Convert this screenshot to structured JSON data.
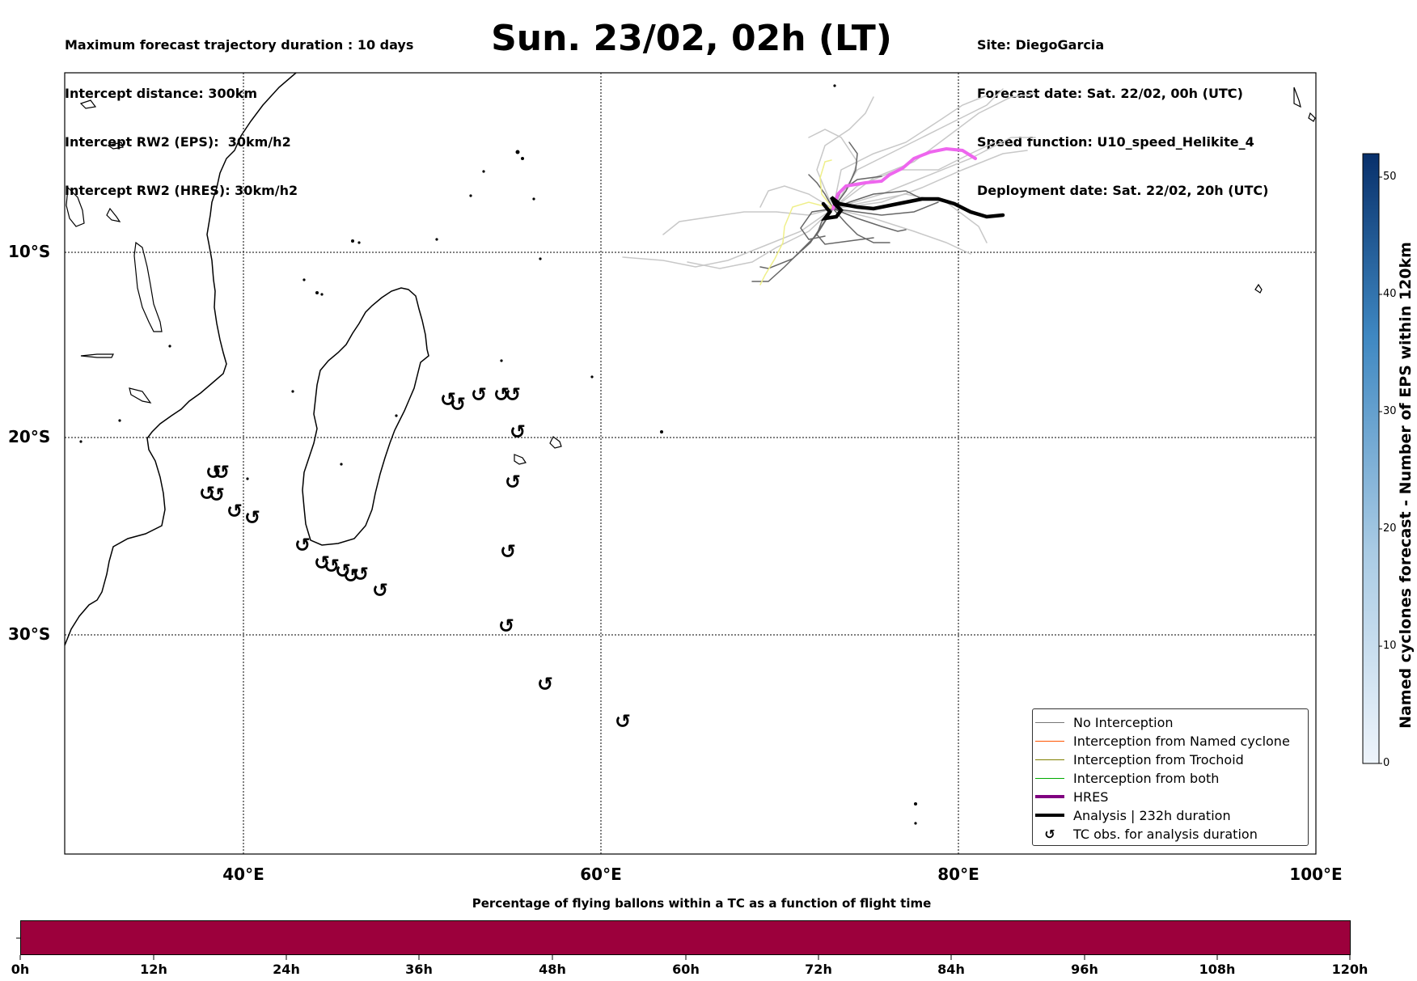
{
  "header": {
    "left_lines": [
      "Maximum forecast trajectory duration : 10 days",
      "Intercept distance: 300km",
      "Intercept RW2 (EPS):  30km/h2",
      "Intercept RW2 (HRES): 30km/h2"
    ],
    "title": "Sun. 23/02, 02h (LT)",
    "right_lines": [
      "Site: DiegoGarcia",
      "Forecast date: Sat. 22/02, 00h (UTC)",
      "Speed function: U10_speed_Helikite_4",
      "Deployment date: Sat. 22/02, 20h (UTC)"
    ]
  },
  "map": {
    "lat_labels": [
      "10°S",
      "20°S",
      "30°S"
    ],
    "lon_labels": [
      "40°E",
      "60°E",
      "80°E",
      "100°E"
    ],
    "tc_symbol": "↺"
  },
  "legend": {
    "items": [
      {
        "label": "No Interception",
        "color": "#777777",
        "style": "thin"
      },
      {
        "label": "Interception from Named cyclone",
        "color": "#ff5500",
        "style": "thin"
      },
      {
        "label": "Interception from Trochoid",
        "color": "#808000",
        "style": "thin"
      },
      {
        "label": "Interception from both",
        "color": "#00aa00",
        "style": "thin"
      },
      {
        "label": "HRES",
        "color": "#800080",
        "style": "thick"
      },
      {
        "label": "Analysis | 232h duration",
        "color": "#000000",
        "style": "thick"
      },
      {
        "label": "TC obs. for analysis duration",
        "color": "#000000",
        "style": "symbol"
      }
    ]
  },
  "colorbar": {
    "label": "Named cyclones forecast - Number of EPS within 120km",
    "ticks": [
      "0",
      "10",
      "20",
      "30",
      "40",
      "50"
    ]
  },
  "bottom": {
    "title": "Percentage of flying ballons within a TC as a function of flight time",
    "tick_labels": [
      "0h",
      "12h",
      "24h",
      "36h",
      "48h",
      "60h",
      "72h",
      "84h",
      "96h",
      "108h",
      "120h"
    ],
    "bar_color": "#9c003c"
  }
}
